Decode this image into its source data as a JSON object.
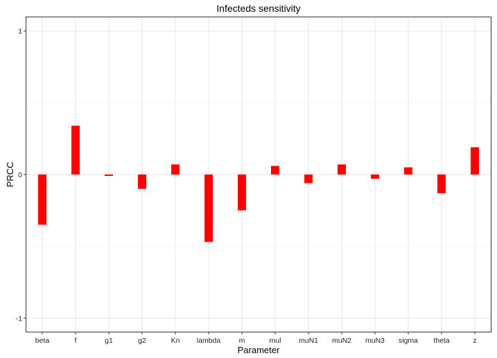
{
  "colors": {
    "bar": "#ff0000",
    "panel_border": "#333333",
    "grid_major": "#e6e6e6",
    "grid_minor": "#f4f4f4",
    "text": "#000000"
  },
  "chart_data": {
    "type": "bar",
    "title": "Infecteds sensitivity",
    "xlabel": "Parameter",
    "ylabel": "PRCC",
    "ylim": [
      -1.1,
      1.1
    ],
    "yticks": [
      -1,
      0,
      1
    ],
    "yticklabels": [
      "-1",
      "0",
      "1"
    ],
    "grid": true,
    "legend": "none",
    "categories": [
      "beta",
      "f",
      "g1",
      "g2",
      "Kn",
      "lambda",
      "m",
      "mul",
      "muN1",
      "muN2",
      "muN3",
      "sigma",
      "theta",
      "z"
    ],
    "values": [
      -0.35,
      0.34,
      -0.01,
      -0.1,
      0.07,
      -0.47,
      -0.25,
      0.06,
      -0.06,
      0.07,
      -0.03,
      0.05,
      -0.13,
      0.19
    ]
  }
}
